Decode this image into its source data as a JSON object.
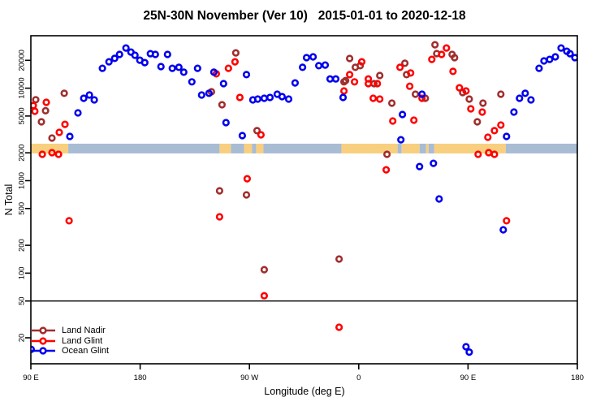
{
  "title": "25N-30N November (Ver 10)   2015-01-01 to 2020-12-18",
  "chart_data": {
    "type": "scatter",
    "title": "25N-30N November (Ver 10)   2015-01-01 to 2020-12-18",
    "xlabel": "Longitude (deg E)",
    "ylabel": "N Total",
    "x_axis": {
      "range_deg": [
        90,
        540
      ],
      "ticks": [
        {
          "deg": 90,
          "label": "90 E"
        },
        {
          "deg": 180,
          "label": "180"
        },
        {
          "deg": 270,
          "label": "90 W"
        },
        {
          "deg": 360,
          "label": "0"
        },
        {
          "deg": 450,
          "label": "90 E"
        },
        {
          "deg": 540,
          "label": "180"
        }
      ]
    },
    "y_axis": {
      "scale": "log",
      "range": [
        12,
        32000
      ],
      "ticks": [
        20,
        50,
        100,
        200,
        500,
        1000,
        2000,
        5000,
        10000,
        20000
      ]
    },
    "reference_hline_y": 50,
    "map_band": {
      "value_top": 2510,
      "value_bottom": 1970,
      "land_color": "#F8CF7F",
      "ocean_color": "#A8BCD4",
      "segments": [
        {
          "surface": "land",
          "from_deg": 90.0,
          "to_deg": 120.8
        },
        {
          "surface": "ocean",
          "from_deg": 120.8,
          "to_deg": 245.4
        },
        {
          "surface": "land",
          "from_deg": 245.4,
          "to_deg": 254.7
        },
        {
          "surface": "ocean",
          "from_deg": 254.7,
          "to_deg": 265.5
        },
        {
          "surface": "land",
          "from_deg": 265.5,
          "to_deg": 272.1
        },
        {
          "surface": "ocean",
          "from_deg": 272.1,
          "to_deg": 275.5
        },
        {
          "surface": "land",
          "from_deg": 275.5,
          "to_deg": 281.5
        },
        {
          "surface": "ocean",
          "from_deg": 281.5,
          "to_deg": 345.8
        },
        {
          "surface": "land",
          "from_deg": 345.8,
          "to_deg": 392.0
        },
        {
          "surface": "ocean",
          "from_deg": 392.0,
          "to_deg": 395.4
        },
        {
          "surface": "land",
          "from_deg": 395.4,
          "to_deg": 410.1
        },
        {
          "surface": "ocean",
          "from_deg": 410.1,
          "to_deg": 415.5
        },
        {
          "surface": "land",
          "from_deg": 415.5,
          "to_deg": 417.5
        },
        {
          "surface": "ocean",
          "from_deg": 417.5,
          "to_deg": 422.2
        },
        {
          "surface": "land",
          "from_deg": 422.2,
          "to_deg": 481.1
        },
        {
          "surface": "ocean",
          "from_deg": 481.1,
          "to_deg": 540.0
        }
      ]
    },
    "series": [
      {
        "name": "Land Nadir",
        "color": "#A02E2E",
        "points": [
          [
            94.0,
            7500
          ],
          [
            102.1,
            5700
          ],
          [
            98.7,
            4330
          ],
          [
            117.5,
            8800
          ],
          [
            107.4,
            2890
          ],
          [
            258.8,
            24100
          ],
          [
            238.7,
            9150
          ],
          [
            247.4,
            6620
          ],
          [
            276.2,
            3470
          ],
          [
            347.8,
            11700
          ],
          [
            352.5,
            20950
          ],
          [
            357.2,
            16800
          ],
          [
            361.2,
            17500
          ],
          [
            349.2,
            12100
          ],
          [
            372.6,
            11200
          ],
          [
            377.3,
            13700
          ],
          [
            387.3,
            6890
          ],
          [
            398.0,
            18600
          ],
          [
            399.4,
            14000
          ],
          [
            406.7,
            8610
          ],
          [
            414.8,
            7780
          ],
          [
            422.8,
            29500
          ],
          [
            424.2,
            23650
          ],
          [
            436.9,
            23200
          ],
          [
            438.9,
            21400
          ],
          [
            445.6,
            8960
          ],
          [
            451.0,
            7620
          ],
          [
            457.6,
            4330
          ],
          [
            462.3,
            6890
          ],
          [
            477.0,
            8610
          ],
          [
            383.3,
            1930
          ],
          [
            245.4,
            776
          ],
          [
            267.5,
            702
          ],
          [
            282.2,
            109
          ],
          [
            343.8,
            142
          ]
        ]
      },
      {
        "name": "Land Glint",
        "color": "#FF0000",
        "points": [
          [
            92.0,
            6490
          ],
          [
            93.3,
            5630
          ],
          [
            102.7,
            7030
          ],
          [
            113.4,
            3330
          ],
          [
            118.1,
            4070
          ],
          [
            99.4,
            1930
          ],
          [
            107.4,
            2010
          ],
          [
            112.8,
            1930
          ],
          [
            121.5,
            368
          ],
          [
            242.7,
            14300
          ],
          [
            252.7,
            16400
          ],
          [
            258.1,
            19300
          ],
          [
            262.1,
            7940
          ],
          [
            279.5,
            3130
          ],
          [
            268.1,
            1050
          ],
          [
            245.4,
            407
          ],
          [
            282.2,
            57
          ],
          [
            343.8,
            26
          ],
          [
            352.5,
            14000
          ],
          [
            362.5,
            19300
          ],
          [
            356.5,
            11700
          ],
          [
            347.8,
            9330
          ],
          [
            367.9,
            12600
          ],
          [
            367.9,
            11200
          ],
          [
            371.9,
            7780
          ],
          [
            375.3,
            11200
          ],
          [
            377.3,
            7620
          ],
          [
            394.0,
            16800
          ],
          [
            402.7,
            14600
          ],
          [
            402.0,
            10500
          ],
          [
            412.1,
            7780
          ],
          [
            388.0,
            4420
          ],
          [
            405.4,
            4510
          ],
          [
            420.2,
            20500
          ],
          [
            428.2,
            23200
          ],
          [
            432.2,
            27200
          ],
          [
            437.6,
            15200
          ],
          [
            442.9,
            10100
          ],
          [
            448.3,
            9330
          ],
          [
            452.3,
            5980
          ],
          [
            461.7,
            5520
          ],
          [
            466.3,
            2950
          ],
          [
            471.7,
            3470
          ],
          [
            477.0,
            3990
          ],
          [
            458.3,
            1930
          ],
          [
            467.0,
            2010
          ],
          [
            471.7,
            1930
          ],
          [
            481.7,
            368
          ],
          [
            382.6,
            1310
          ]
        ]
      },
      {
        "name": "Ocean Glint",
        "color": "#0000EE",
        "points": [
          [
            133.5,
            7780
          ],
          [
            138.2,
            8440
          ],
          [
            142.2,
            7470
          ],
          [
            128.8,
            5410
          ],
          [
            122.1,
            3010
          ],
          [
            148.9,
            16400
          ],
          [
            154.3,
            19300
          ],
          [
            159.0,
            21000
          ],
          [
            163.0,
            23200
          ],
          [
            168.3,
            27200
          ],
          [
            172.4,
            24600
          ],
          [
            175.7,
            22700
          ],
          [
            179.7,
            20100
          ],
          [
            183.8,
            18900
          ],
          [
            188.4,
            23600
          ],
          [
            192.5,
            23200
          ],
          [
            202.5,
            23200
          ],
          [
            197.1,
            17100
          ],
          [
            206.5,
            16400
          ],
          [
            211.9,
            16800
          ],
          [
            215.9,
            14900
          ],
          [
            222.6,
            11700
          ],
          [
            227.3,
            16400
          ],
          [
            230.6,
            8440
          ],
          [
            236.7,
            8800
          ],
          [
            240.7,
            14900
          ],
          [
            248.7,
            11200
          ],
          [
            267.5,
            14000
          ],
          [
            250.7,
            4240
          ],
          [
            264.1,
            3070
          ],
          [
            272.8,
            7470
          ],
          [
            276.8,
            7620
          ],
          [
            282.2,
            7780
          ],
          [
            286.9,
            7940
          ],
          [
            292.9,
            8610
          ],
          [
            296.9,
            8100
          ],
          [
            302.3,
            7620
          ],
          [
            307.6,
            11400
          ],
          [
            313.7,
            16800
          ],
          [
            317.0,
            21400
          ],
          [
            322.4,
            21800
          ],
          [
            327.1,
            17500
          ],
          [
            332.4,
            17800
          ],
          [
            336.4,
            12600
          ],
          [
            341.1,
            12600
          ],
          [
            347.1,
            7940
          ],
          [
            396.0,
            5190
          ],
          [
            412.1,
            8610
          ],
          [
            394.7,
            2770
          ],
          [
            410.1,
            1420
          ],
          [
            421.5,
            1540
          ],
          [
            426.2,
            634
          ],
          [
            479.0,
            294
          ],
          [
            481.7,
            3010
          ],
          [
            487.8,
            5520
          ],
          [
            492.4,
            7780
          ],
          [
            497.1,
            8800
          ],
          [
            501.8,
            7470
          ],
          [
            508.5,
            16400
          ],
          [
            512.5,
            19700
          ],
          [
            517.2,
            20500
          ],
          [
            521.9,
            21800
          ],
          [
            526.6,
            27200
          ],
          [
            531.3,
            25100
          ],
          [
            534.0,
            23600
          ],
          [
            538.0,
            21400
          ],
          [
            448.3,
            16
          ],
          [
            451.0,
            14
          ],
          [
            90.3,
            15
          ]
        ]
      }
    ],
    "legend": {
      "position": "bottom-left",
      "entries": [
        "Land Nadir",
        "Land Glint",
        "Ocean Glint"
      ]
    }
  }
}
